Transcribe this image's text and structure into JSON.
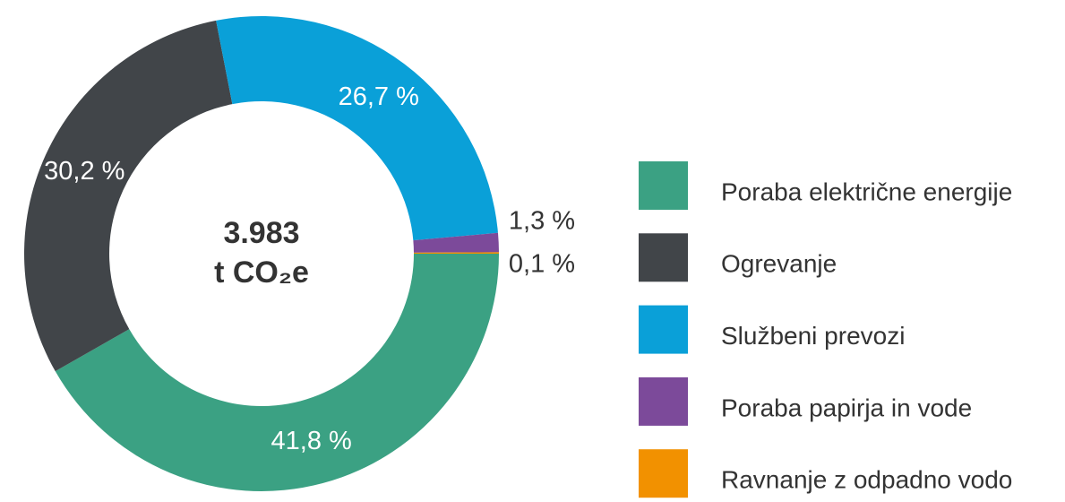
{
  "chart_data": {
    "type": "donut",
    "center_label": [
      "3.983",
      "t CO₂e"
    ],
    "categories": [
      "Poraba električne energije",
      "Ogrevanje",
      "Službeni prevozi",
      "Poraba papirja in vode",
      "Ravnanje z odpadno vodo"
    ],
    "values": [
      41.8,
      30.2,
      26.7,
      1.3,
      0.1
    ],
    "value_labels": [
      "41,8 %",
      "30,2 %",
      "26,7 %",
      "1,3 %",
      "0,1 %"
    ],
    "colors": [
      "#3ba183",
      "#414549",
      "#0aa0d8",
      "#7c4a9a",
      "#f29100"
    ],
    "legend": "right"
  }
}
